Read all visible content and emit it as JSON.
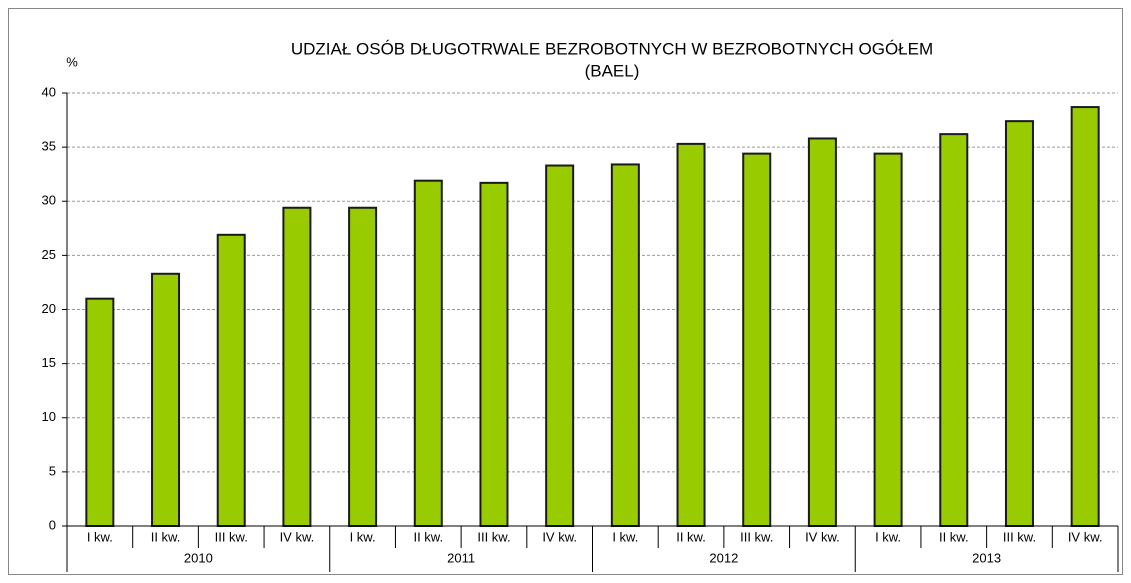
{
  "chart_data": {
    "type": "bar",
    "title": "UDZIAŁ OSÓB DŁUGOTRWALE BEZROBOTNYCH W BEZROBOTNYCH OGÓŁEM",
    "subtitle": "(BAEL)",
    "y_label": "%",
    "groups": [
      "2010",
      "2011",
      "2012",
      "2013"
    ],
    "categories": [
      "I kw.",
      "II kw.",
      "III kw.",
      "IV kw.",
      "I kw.",
      "II kw.",
      "III kw.",
      "IV kw.",
      "I kw.",
      "II kw.",
      "III kw.",
      "IV kw.",
      "I kw.",
      "II kw.",
      "III kw.",
      "IV kw."
    ],
    "values": [
      21.0,
      23.3,
      26.9,
      29.4,
      29.4,
      31.9,
      31.7,
      33.3,
      33.4,
      35.3,
      34.4,
      35.8,
      34.4,
      36.2,
      37.4,
      38.7
    ],
    "color": "#99cc00",
    "ylim": [
      0,
      40
    ],
    "yticks": [
      0,
      5,
      10,
      15,
      20,
      25,
      30,
      35,
      40
    ],
    "grid": true
  }
}
